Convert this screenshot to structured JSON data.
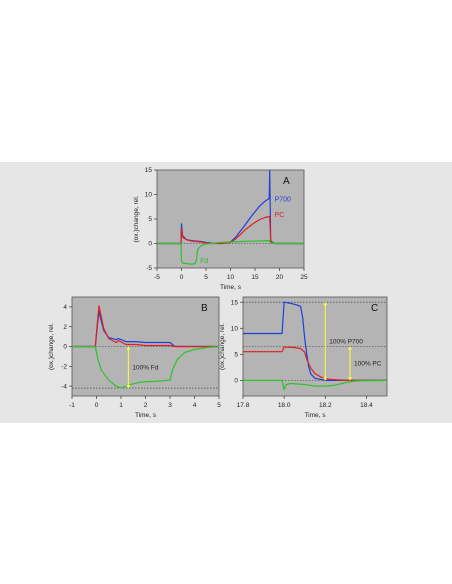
{
  "colors": {
    "band": "#e6e6e6",
    "plot_bg": "#b4b4b4",
    "p700": "#1f3fd8",
    "pc": "#e02020",
    "fd": "#2ec22e",
    "marker": "#ffff33",
    "reference": "#333333"
  },
  "chart_data": [
    {
      "id": "A",
      "type": "line",
      "panel_label": "A",
      "xlabel": "Time, s",
      "ylabel": "(ox.)change, rel.",
      "xlim": [
        -5,
        25
      ],
      "ylim": [
        -5,
        15
      ],
      "xticks": [
        -5,
        0,
        5,
        10,
        15,
        20,
        25
      ],
      "yticks": [
        -5,
        0,
        5,
        10,
        15
      ],
      "grid": false,
      "series": [
        {
          "name": "P700",
          "color": "#1f3fd8",
          "x": [
            -5,
            -0.1,
            0,
            0.2,
            0.6,
            1,
            2,
            3,
            4,
            5,
            6,
            8,
            10,
            11,
            12,
            13,
            14,
            15,
            16,
            17,
            17.9,
            18,
            18.2,
            19,
            21,
            25
          ],
          "y": [
            0,
            0,
            4,
            1.6,
            1.2,
            0.8,
            0.6,
            0.5,
            0.4,
            0.2,
            0.1,
            0,
            0.3,
            1.2,
            2.5,
            3.8,
            5.2,
            6.5,
            7.7,
            8.6,
            9.2,
            15,
            0.5,
            0,
            0,
            0
          ]
        },
        {
          "name": "PC",
          "color": "#e02020",
          "x": [
            -5,
            -0.1,
            0,
            0.3,
            1,
            2,
            3,
            4,
            5,
            6,
            8,
            10,
            11,
            12,
            13,
            14,
            15,
            16,
            17,
            17.9,
            18,
            18.2,
            19,
            21,
            25
          ],
          "y": [
            0,
            0,
            3,
            1.2,
            0.8,
            0.5,
            0.4,
            0.3,
            0.1,
            0,
            0,
            0.2,
            0.9,
            1.8,
            2.8,
            3.6,
            4.3,
            4.9,
            5.3,
            5.5,
            5.6,
            0.4,
            0,
            0,
            0
          ]
        },
        {
          "name": "Fd",
          "color": "#2ec22e",
          "x": [
            -5,
            -0.1,
            0,
            0.3,
            1,
            2,
            2.8,
            3,
            3.3,
            4,
            5,
            8,
            12,
            17.9,
            18.2,
            19,
            25
          ],
          "y": [
            0,
            0,
            -3.6,
            -4,
            -4.1,
            -4.2,
            -4.1,
            -3.6,
            -1.2,
            -0.4,
            -0.1,
            0.2,
            0.4,
            0.6,
            0.1,
            0,
            0
          ]
        }
      ],
      "labels": [
        {
          "text": "P700",
          "x": 19,
          "y": 9,
          "color": "#1f3fd8"
        },
        {
          "text": "PC",
          "x": 19,
          "y": 5.8,
          "color": "#e02020"
        },
        {
          "text": "Fd",
          "x": 3.8,
          "y": -3.6,
          "color": "#2ec22e"
        }
      ]
    },
    {
      "id": "B",
      "type": "line",
      "panel_label": "B",
      "xlabel": "Time, s",
      "ylabel": "(ox.)change, rel.",
      "xlim": [
        -1,
        5
      ],
      "ylim": [
        -5,
        5
      ],
      "xticks": [
        -1,
        0,
        1,
        2,
        3,
        4,
        5
      ],
      "yticks": [
        -4,
        -2,
        0,
        2,
        4
      ],
      "grid": false,
      "reference_lines": [
        0,
        -4.2
      ],
      "marker": {
        "x": 1.3,
        "from": -4.2,
        "to": 0,
        "label": "100% Fd"
      },
      "series": [
        {
          "name": "P700",
          "color": "#1f3fd8",
          "x": [
            -1,
            -0.05,
            0.05,
            0.1,
            0.15,
            0.3,
            0.5,
            0.8,
            0.9,
            1.2,
            1.6,
            2,
            2.5,
            3,
            3.2,
            4,
            5
          ],
          "y": [
            0,
            0,
            2.4,
            3.6,
            3,
            1.6,
            0.9,
            0.7,
            0.8,
            0.5,
            0.5,
            0.4,
            0.4,
            0.4,
            0,
            0,
            0
          ]
        },
        {
          "name": "PC",
          "color": "#e02020",
          "x": [
            -1,
            -0.05,
            0.05,
            0.1,
            0.15,
            0.3,
            0.5,
            0.8,
            0.9,
            1.2,
            1.6,
            2,
            2.5,
            3,
            3.2,
            4,
            5
          ],
          "y": [
            0,
            0,
            2.8,
            4.1,
            3.5,
            1.8,
            0.8,
            0.4,
            0.6,
            0.2,
            0.2,
            0.1,
            0.1,
            0.1,
            0,
            0,
            0
          ]
        },
        {
          "name": "Fd",
          "color": "#2ec22e",
          "x": [
            -1,
            -0.05,
            0.05,
            0.2,
            0.5,
            0.8,
            1,
            1.3,
            1.8,
            2.5,
            3,
            3.1,
            3.3,
            3.6,
            4,
            4.5,
            5
          ],
          "y": [
            0,
            0,
            -1.2,
            -2.4,
            -3.4,
            -4,
            -4.2,
            -3.9,
            -3.6,
            -3.5,
            -3.4,
            -2.4,
            -1.3,
            -0.6,
            -0.3,
            -0.1,
            0
          ]
        }
      ]
    },
    {
      "id": "C",
      "type": "line",
      "panel_label": "C",
      "xlabel": "Time, s",
      "ylabel": "(ox.)change, rel.",
      "xlim": [
        17.8,
        18.5
      ],
      "ylim": [
        -3,
        16
      ],
      "xticks": [
        17.8,
        18.0,
        18.2,
        18.4
      ],
      "xtick_labels": [
        "17.8",
        "18.0",
        "18.2",
        "18.4"
      ],
      "yticks": [
        0,
        5,
        10,
        15
      ],
      "grid": false,
      "reference_lines": [
        0,
        15,
        6.5
      ],
      "markers": [
        {
          "x": 18.2,
          "from": 0,
          "to": 15,
          "label": "100% P700"
        },
        {
          "x": 18.32,
          "from": 0,
          "to": 6.5,
          "label": "100% PC"
        }
      ],
      "series": [
        {
          "name": "P700",
          "color": "#1f3fd8",
          "x": [
            17.8,
            17.99,
            18.0,
            18.03,
            18.06,
            18.08,
            18.09,
            18.1,
            18.11,
            18.12,
            18.13,
            18.15,
            18.2,
            18.25,
            18.5
          ],
          "y": [
            9,
            9,
            15,
            14.8,
            14.5,
            14.2,
            12,
            8,
            5,
            2.5,
            1.2,
            0.4,
            0,
            0,
            0
          ]
        },
        {
          "name": "PC",
          "color": "#e02020",
          "x": [
            17.8,
            17.99,
            18.0,
            18.05,
            18.08,
            18.1,
            18.11,
            18.13,
            18.15,
            18.18,
            18.22,
            18.3,
            18.5
          ],
          "y": [
            5.5,
            5.5,
            6.4,
            6.3,
            6.1,
            5.4,
            4,
            2.3,
            1.3,
            0.6,
            0.2,
            0,
            0
          ]
        },
        {
          "name": "Fd",
          "color": "#2ec22e",
          "x": [
            17.8,
            17.99,
            18.0,
            18.01,
            18.03,
            18.1,
            18.15,
            18.2,
            18.25,
            18.3,
            18.35,
            18.5
          ],
          "y": [
            0,
            0,
            -1.8,
            -0.8,
            -0.6,
            -0.8,
            -1.1,
            -1.1,
            -0.9,
            -0.4,
            -0.1,
            0
          ]
        }
      ]
    }
  ]
}
